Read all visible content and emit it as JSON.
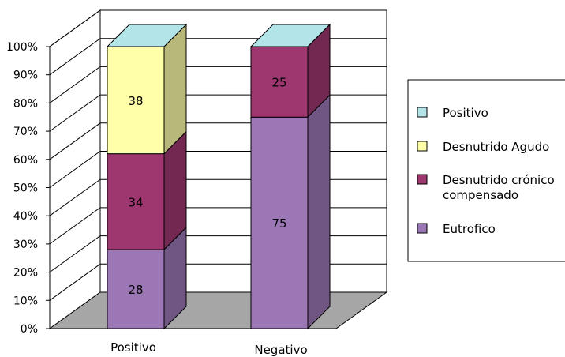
{
  "chart_data": {
    "type": "bar",
    "stacked": true,
    "percent": true,
    "three_d": true,
    "title": "",
    "xlabel": "",
    "ylabel": "",
    "ylim": [
      0,
      100
    ],
    "y_ticks": [
      "0%",
      "10%",
      "20%",
      "30%",
      "40%",
      "50%",
      "60%",
      "70%",
      "80%",
      "90%",
      "100%"
    ],
    "categories": [
      "Positivo",
      "Negativo"
    ],
    "series": [
      {
        "name": "Eutrofico",
        "values": [
          28,
          75
        ],
        "labels": [
          "28",
          "75"
        ],
        "color": "#9b77b5"
      },
      {
        "name": "Desnutrido crónico compensado",
        "values": [
          34,
          25
        ],
        "labels": [
          "34",
          "25"
        ],
        "color": "#9e3770"
      },
      {
        "name": "Desnutrido Agudo",
        "values": [
          38,
          0
        ],
        "labels": [
          "38",
          ""
        ],
        "color": "#ffffaa"
      },
      {
        "name": "Positivo",
        "values": [
          0,
          0
        ],
        "labels": [
          "",
          ""
        ],
        "color": "#b3e4e8"
      }
    ],
    "legend": {
      "position": "right",
      "entries": [
        {
          "series": "Positivo",
          "lines": [
            "Positivo"
          ]
        },
        {
          "series": "Desnutrido Agudo",
          "lines": [
            "Desnutrido Agudo"
          ]
        },
        {
          "series": "Desnutrido crónico compensado",
          "lines": [
            "Desnutrido crónico",
            "compensado"
          ]
        },
        {
          "series": "Eutrofico",
          "lines": [
            "Eutrofico"
          ]
        }
      ]
    },
    "grid": true,
    "floor_color": "#a6a6a6"
  }
}
